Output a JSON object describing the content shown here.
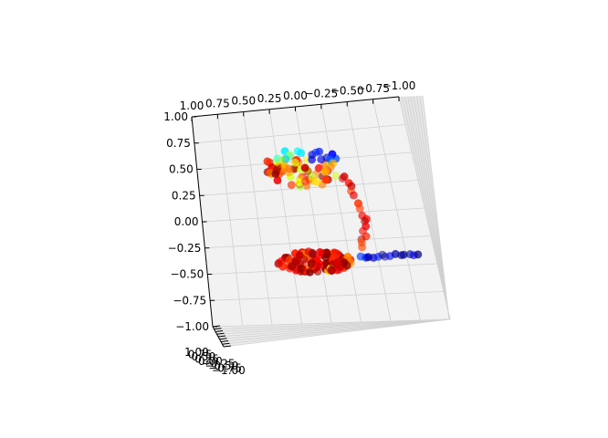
{
  "chart_data": {
    "type": "scatter",
    "projection": "3d",
    "title": "",
    "xlabel": "",
    "ylabel": "",
    "zlabel": "",
    "grid": true,
    "pane_color": "#f2f2f2",
    "colormap": "jet",
    "xlim": [
      -1.0,
      1.0
    ],
    "ylim": [
      -1.0,
      1.0
    ],
    "zlim": [
      -1.0,
      1.0
    ],
    "x_ticks": [
      "1.00",
      "0.75",
      "0.50",
      "0.25",
      "0.00",
      "−0.25",
      "−0.50",
      "−0.75",
      "−1.00"
    ],
    "z_ticks": [
      "1.00",
      "0.75",
      "0.50",
      "0.25",
      "0.00",
      "−0.25",
      "−0.50",
      "−0.75",
      "−1.00"
    ],
    "y_ticks": [
      "1.00",
      "0.75",
      "0.50",
      "0.25",
      "0.00",
      "−0.25",
      "−0.50",
      "−0.75",
      "−1.00"
    ],
    "clusters": [
      {
        "region": "upper-left blob",
        "colors": "cyan, blue, yellow, red",
        "n": 80
      },
      {
        "region": "descending tail",
        "colors": "orange, red",
        "n": 18
      },
      {
        "region": "lower blob",
        "colors": "dark red, red, yellow",
        "n": 110
      },
      {
        "region": "right tail",
        "colors": "blue, navy",
        "n": 14
      }
    ]
  }
}
